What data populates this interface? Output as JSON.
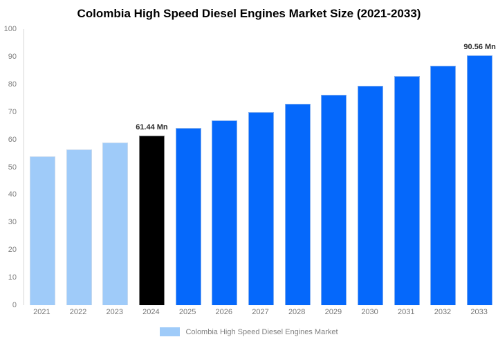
{
  "title": "Colombia High Speed Diesel Engines Market Size (2021-2033)",
  "chart_data": {
    "type": "bar",
    "title": "Colombia High Speed Diesel Engines Market Size (2021-2033)",
    "categories": [
      "2021",
      "2022",
      "2023",
      "2024",
      "2025",
      "2026",
      "2027",
      "2028",
      "2029",
      "2030",
      "2031",
      "2032",
      "2033"
    ],
    "values": [
      53.9,
      56.3,
      58.8,
      61.44,
      64.1,
      66.9,
      69.9,
      72.9,
      76.2,
      79.5,
      83.0,
      86.6,
      90.56
    ],
    "bar_colors": [
      "#9fcbf9",
      "#9fcbf9",
      "#9fcbf9",
      "#000000",
      "#0568fb",
      "#0568fb",
      "#0568fb",
      "#0568fb",
      "#0568fb",
      "#0568fb",
      "#0568fb",
      "#0568fb",
      "#0568fb"
    ],
    "annotations": [
      {
        "category": "2024",
        "text": "61.44 Mn"
      },
      {
        "category": "2033",
        "text": "90.56 Mn"
      }
    ],
    "xlabel": "",
    "ylabel": "",
    "ylim": [
      0,
      100
    ],
    "yticks": [
      0,
      10,
      20,
      30,
      40,
      50,
      60,
      70,
      80,
      90,
      100
    ],
    "grid": false,
    "legend_position": "bottom",
    "legend": {
      "label": "Colombia High Speed Diesel Engines Market",
      "swatch_color": "#9fcbf9"
    },
    "colors": {
      "historical": "#9fcbf9",
      "base_year": "#000000",
      "forecast": "#0568fb",
      "axis_text": "#808080",
      "value_label_text": "#2b2b2b"
    }
  }
}
